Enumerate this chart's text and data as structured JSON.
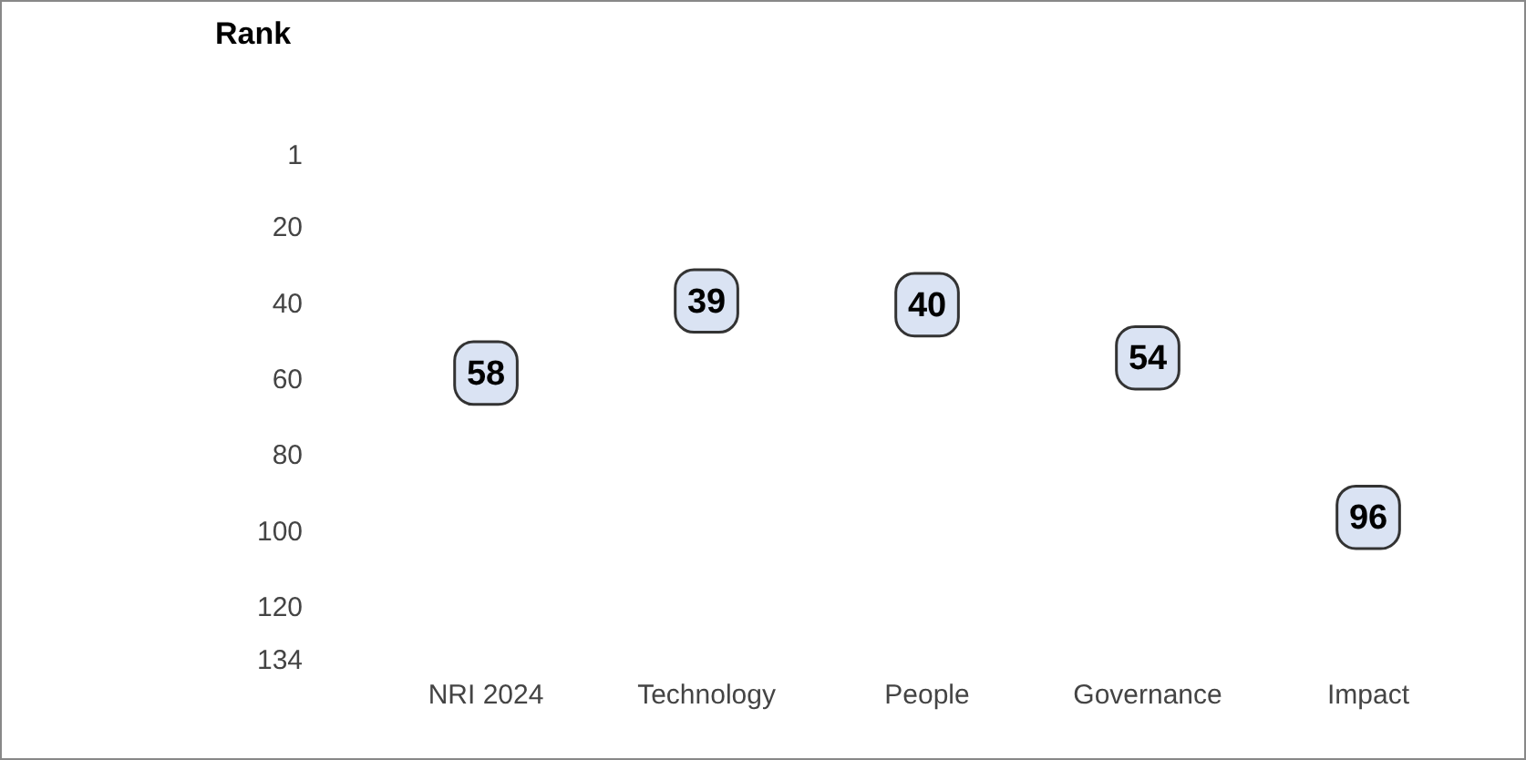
{
  "chart_data": {
    "type": "scatter",
    "ylabel": "Rank",
    "categories": [
      "NRI 2024",
      "Technology",
      "People",
      "Governance",
      "Impact"
    ],
    "values": [
      58,
      39,
      40,
      54,
      96
    ],
    "color": "#dae3f3",
    "ylim": [
      134,
      1
    ],
    "yticks": [
      1,
      20,
      40,
      60,
      80,
      100,
      120,
      134
    ],
    "grid": false,
    "legend": false,
    "marker": "square",
    "data_labels": true
  }
}
